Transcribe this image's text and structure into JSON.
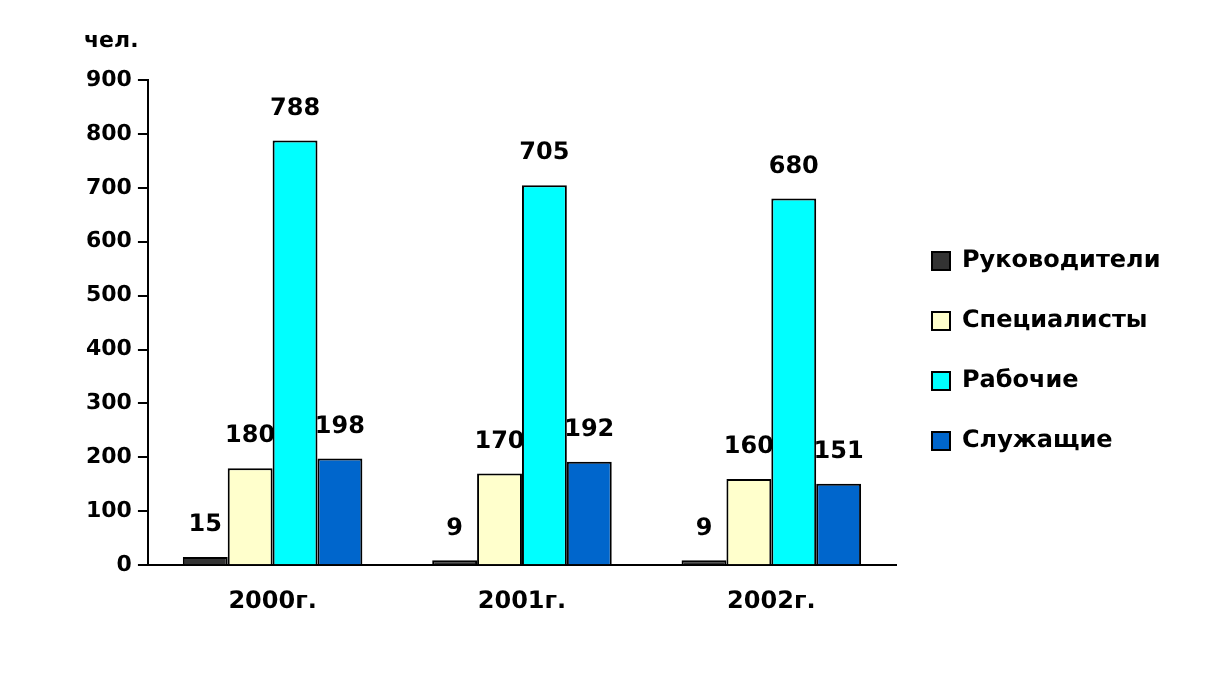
{
  "chart_data": {
    "type": "bar",
    "ylabel": "чел.",
    "categories": [
      "2000г.",
      "2001г.",
      "2002г."
    ],
    "series": [
      {
        "name": "Руководители",
        "color": "#333333",
        "values": [
          15,
          9,
          9
        ]
      },
      {
        "name": "Специалисты",
        "color": "#ffffcc",
        "values": [
          180,
          170,
          160
        ]
      },
      {
        "name": "Рабочие",
        "color": "#00ffff",
        "values": [
          788,
          705,
          680
        ]
      },
      {
        "name": "Служащие",
        "color": "#0066cc",
        "values": [
          198,
          192,
          151
        ]
      }
    ],
    "ylim": [
      0,
      900
    ],
    "yticks": [
      0,
      100,
      200,
      300,
      400,
      500,
      600,
      700,
      800,
      900
    ],
    "grid": false,
    "legend": "right",
    "data_labels": true
  }
}
